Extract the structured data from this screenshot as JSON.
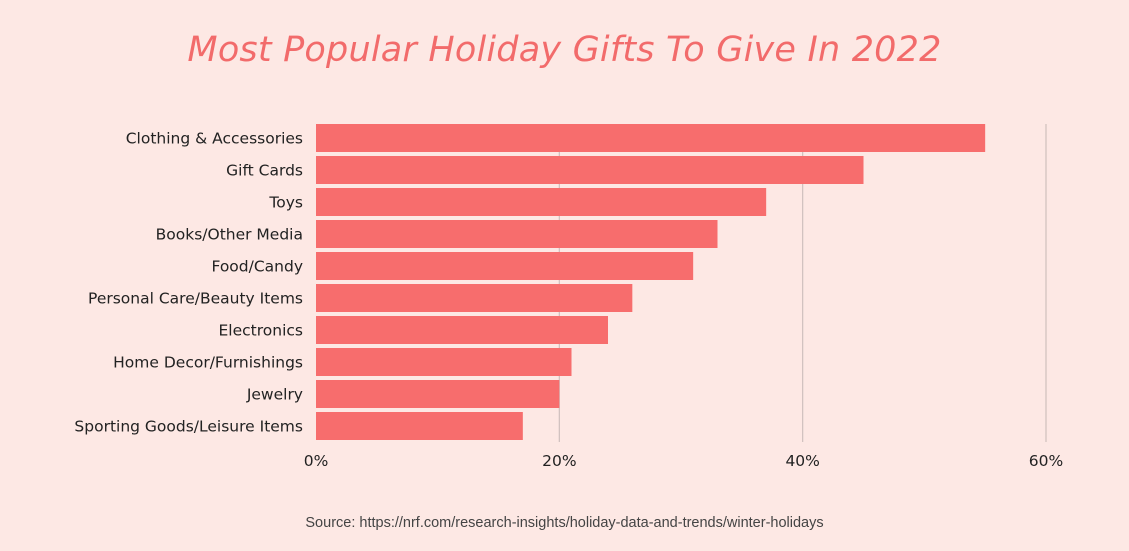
{
  "title": "Most Popular Holiday Gifts To Give In 2022",
  "source": "Source: https://nrf.com/research-insights/holiday-data-and-trends/winter-holidays",
  "colors": {
    "background": "#fde8e4",
    "bar": "#f76d6d",
    "title": "#f26b6b",
    "gridline": "#cfc0bd",
    "text": "#222222"
  },
  "chart_data": {
    "type": "bar",
    "orientation": "horizontal",
    "categories": [
      "Clothing & Accessories",
      "Gift Cards",
      "Toys",
      "Books/Other Media",
      "Food/Candy",
      "Personal Care/Beauty Items",
      "Electronics",
      "Home Decor/Furnishings",
      "Jewelry",
      "Sporting Goods/Leisure Items"
    ],
    "values": [
      55,
      45,
      37,
      33,
      31,
      26,
      24,
      21,
      20,
      17
    ],
    "xlim": [
      0,
      60
    ],
    "xticks": [
      0,
      20,
      40,
      60
    ],
    "xtick_labels": [
      "0%",
      "20%",
      "40%",
      "60%"
    ],
    "grid": true,
    "xlabel": "",
    "ylabel": ""
  }
}
